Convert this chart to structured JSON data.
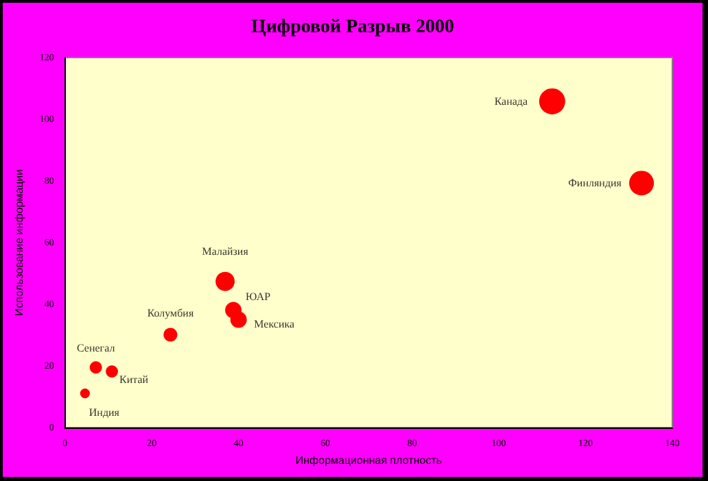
{
  "chart_data": {
    "type": "bubble",
    "title": "Цифровой Разрыв 2000",
    "xlabel": "Информационная плотность",
    "ylabel": "Использование информации",
    "x": [
      4.6,
      7.1,
      10.8,
      24.3,
      36.9,
      38.8,
      40,
      112.3,
      132.9
    ],
    "series": [
      {
        "color": "#ff0000",
        "values": [
          11.1,
          19.5,
          18.2,
          30.1,
          47.4,
          38.1,
          35,
          105.8,
          79.3
        ],
        "sizes": [
          0.14,
          0.22,
          0.22,
          0.28,
          0.54,
          0.4,
          0.4,
          1,
          0.9
        ]
      }
    ],
    "annotations": [
      {
        "text": "Индия",
        "x": 4.6,
        "y": 11.1
      },
      {
        "text": "Сенегал",
        "x": 7.1,
        "y": 19.5
      },
      {
        "text": "Китай",
        "x": 10.8,
        "y": 18.2
      },
      {
        "text": "Колумбия",
        "x": 24.3,
        "y": 30.1
      },
      {
        "text": "Малайзия",
        "x": 36.9,
        "y": 47.4
      },
      {
        "text": "ЮАР",
        "x": 38.8,
        "y": 38.1
      },
      {
        "text": "Мексика",
        "x": 40,
        "y": 35
      },
      {
        "text": "Канада",
        "x": 112.3,
        "y": 105.8
      },
      {
        "text": "Финляндия",
        "x": 132.9,
        "y": 79.3
      }
    ],
    "xlim": [
      0,
      140
    ],
    "xticks": [
      0,
      20,
      40,
      60,
      80,
      100,
      120,
      140
    ],
    "ylim": [
      0,
      120
    ],
    "yticks": [
      0,
      20,
      40,
      60,
      80,
      100,
      120
    ],
    "grid": false
  }
}
